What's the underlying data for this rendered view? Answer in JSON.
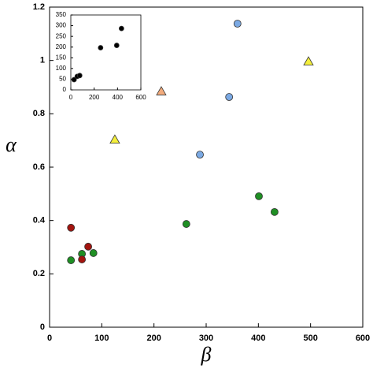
{
  "chart_data": [
    {
      "type": "scatter",
      "x_label": "β",
      "y_label": "α",
      "xlim": [
        0,
        600
      ],
      "xticks": [
        0,
        100,
        200,
        300,
        400,
        500,
        600
      ],
      "ylim": [
        0,
        1.2
      ],
      "yticks": [
        0,
        0.2,
        0.4,
        0.6,
        0.8,
        1,
        1.2
      ],
      "series": [
        {
          "color": "#7ba9e3",
          "marker": "circle",
          "x": [
            360,
            344,
            288
          ],
          "values": [
            1.138,
            0.863,
            0.647
          ]
        },
        {
          "color": "#f4ef3c",
          "marker": "triangle",
          "x": [
            496,
            125
          ],
          "values": [
            0.996,
            0.703
          ]
        },
        {
          "color": "#f2ab7c",
          "marker": "triangle",
          "x": [
            214
          ],
          "values": [
            0.884
          ]
        },
        {
          "color": "#1f8f24",
          "marker": "circle",
          "x": [
            401,
            431,
            262,
            41,
            62,
            84
          ],
          "values": [
            0.491,
            0.432,
            0.387,
            0.251,
            0.275,
            0.278
          ]
        },
        {
          "color": "#a3140f",
          "marker": "circle",
          "x": [
            41,
            62,
            74
          ],
          "values": [
            0.373,
            0.254,
            0.302
          ]
        }
      ]
    },
    {
      "type": "scatter",
      "xlim": [
        0,
        600
      ],
      "xticks": [
        0,
        200,
        400,
        600
      ],
      "ylim": [
        0,
        350
      ],
      "yticks": [
        0,
        50,
        100,
        150,
        200,
        250,
        300,
        350
      ],
      "series": [
        {
          "color": "#000000",
          "marker": "circle",
          "x": [
            28,
            55,
            76,
            255,
            393,
            434
          ],
          "values": [
            48,
            63,
            67,
            197,
            208,
            287
          ]
        }
      ]
    }
  ]
}
